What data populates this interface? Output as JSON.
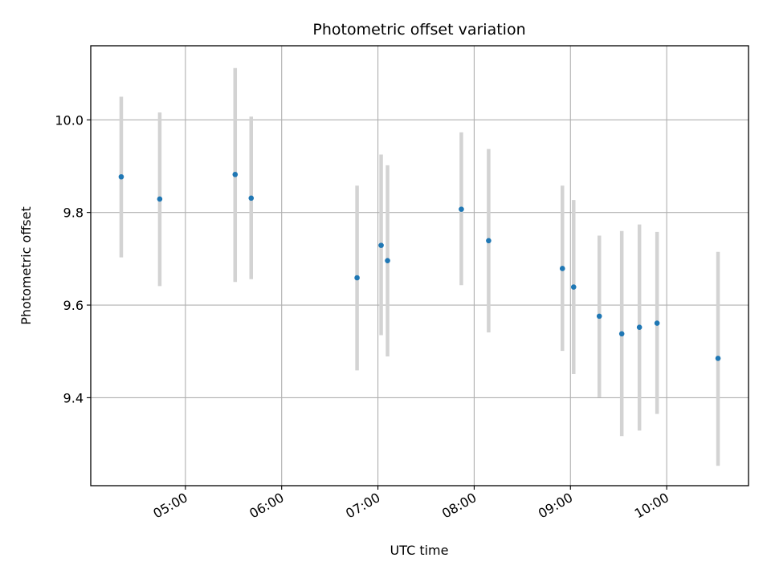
{
  "chart_data": {
    "type": "scatter",
    "title": "Photometric offset variation",
    "xlabel": "UTC time",
    "ylabel": "Photometric offset",
    "grid": true,
    "xlim": [
      "04:01",
      "10:51"
    ],
    "ylim": [
      9.21,
      10.16
    ],
    "xticks": [
      "05:00",
      "06:00",
      "07:00",
      "08:00",
      "09:00",
      "10:00"
    ],
    "yticks": [
      "9.4",
      "9.6",
      "9.8",
      "10.0"
    ],
    "colors": {
      "point": "#1f77b4",
      "errorbar": "#d3d3d3",
      "grid": "#b0b0b0"
    },
    "series": [
      {
        "points": [
          {
            "x": "04:20",
            "y": 9.877,
            "ylow": 9.703,
            "yhigh": 10.05
          },
          {
            "x": "04:44",
            "y": 9.829,
            "ylow": 9.641,
            "yhigh": 10.016
          },
          {
            "x": "05:31",
            "y": 9.882,
            "ylow": 9.65,
            "yhigh": 10.112
          },
          {
            "x": "05:41",
            "y": 9.831,
            "ylow": 9.656,
            "yhigh": 10.007
          },
          {
            "x": "06:47",
            "y": 9.659,
            "ylow": 9.459,
            "yhigh": 9.858
          },
          {
            "x": "07:02",
            "y": 9.729,
            "ylow": 9.535,
            "yhigh": 9.925
          },
          {
            "x": "07:06",
            "y": 9.696,
            "ylow": 9.489,
            "yhigh": 9.902
          },
          {
            "x": "07:52",
            "y": 9.807,
            "ylow": 9.643,
            "yhigh": 9.973
          },
          {
            "x": "08:09",
            "y": 9.739,
            "ylow": 9.541,
            "yhigh": 9.937
          },
          {
            "x": "08:55",
            "y": 9.679,
            "ylow": 9.501,
            "yhigh": 9.858
          },
          {
            "x": "09:02",
            "y": 9.639,
            "ylow": 9.451,
            "yhigh": 9.827
          },
          {
            "x": "09:18",
            "y": 9.576,
            "ylow": 9.401,
            "yhigh": 9.75
          },
          {
            "x": "09:32",
            "y": 9.538,
            "ylow": 9.317,
            "yhigh": 9.76
          },
          {
            "x": "09:43",
            "y": 9.552,
            "ylow": 9.329,
            "yhigh": 9.774
          },
          {
            "x": "09:54",
            "y": 9.561,
            "ylow": 9.365,
            "yhigh": 9.758
          },
          {
            "x": "10:32",
            "y": 9.485,
            "ylow": 9.253,
            "yhigh": 9.715
          }
        ]
      }
    ]
  }
}
